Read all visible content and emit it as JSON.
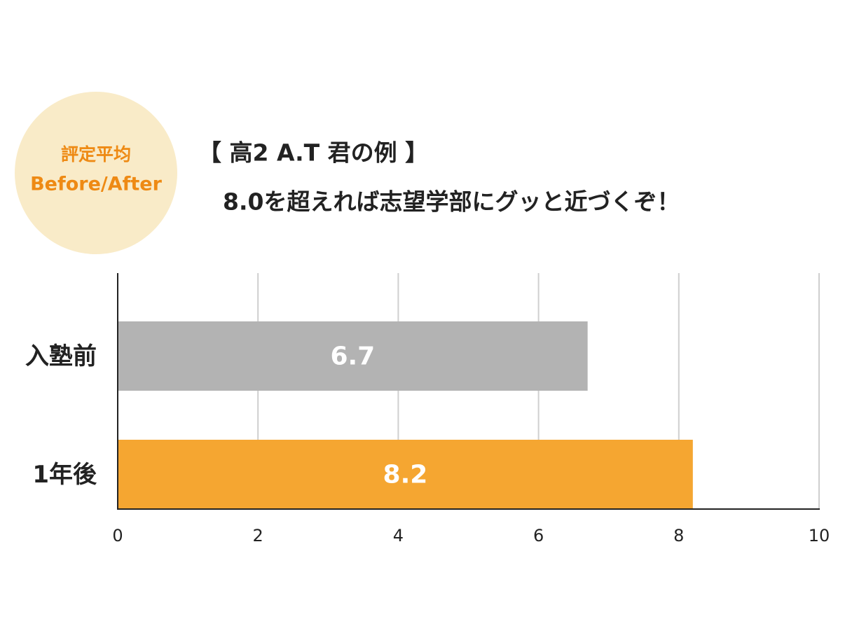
{
  "chart_data": {
    "type": "bar",
    "annotations": [
      "評定平均",
      "Before/After"
    ],
    "title": "【 高2  A.T 君の例 】",
    "subtitle": "8.0を超えれば志望学部にグッと近づくぞ！",
    "categories": [
      "入塾前",
      "1年後"
    ],
    "values": [
      6.7,
      8.2
    ],
    "colors": [
      "#b3b3b3",
      "#f5a631"
    ],
    "xlim": [
      0,
      10
    ],
    "xticks": [
      0,
      2,
      4,
      6,
      8,
      10
    ],
    "grid": true
  }
}
